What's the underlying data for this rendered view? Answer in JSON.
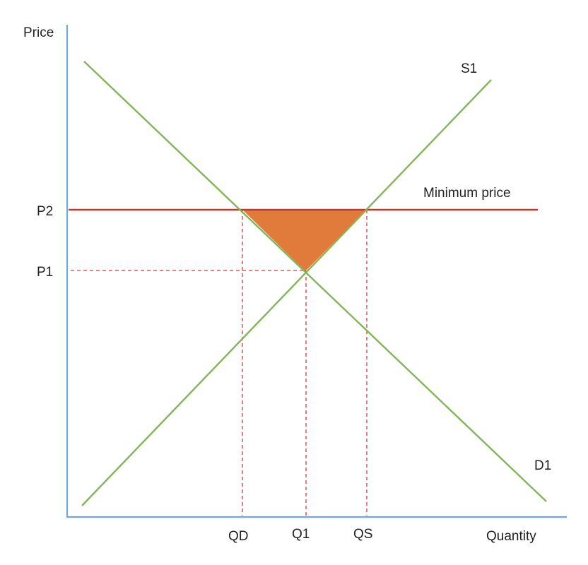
{
  "axes": {
    "y_label": "Price",
    "x_label": "Quantity"
  },
  "curves": {
    "supply_label": "S1",
    "demand_label": "D1",
    "minimum_price_label": "Minimum price"
  },
  "price_labels": {
    "p1": "P1",
    "p2": "P2"
  },
  "quantity_labels": {
    "qd": "QD",
    "q1": "Q1",
    "qs": "QS"
  },
  "colors": {
    "axis": "#6fa8dc",
    "curve": "#82b55a",
    "minimum_price_line": "#c0392b",
    "guide_lines": "#d63b3b",
    "excess_supply_area": "#e07b3c"
  }
}
